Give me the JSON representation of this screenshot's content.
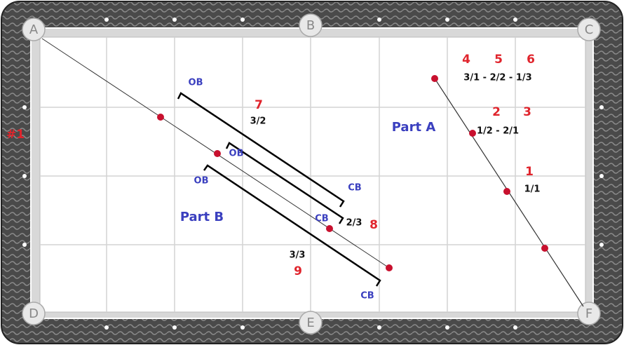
{
  "pockets": {
    "a": "A",
    "b": "B",
    "c": "C",
    "d": "D",
    "e": "E",
    "f": "F"
  },
  "side_label": "#1",
  "part_a": {
    "title": "Part A",
    "top_numbers": [
      "4",
      "5",
      "6"
    ],
    "top_fractions": "3/1 - 2/2 - 1/3",
    "middle_numbers": [
      "2",
      "3"
    ],
    "middle_fractions": "1/2 - 2/1",
    "bottom_number": "1",
    "bottom_fraction": "1/1"
  },
  "part_b": {
    "title": "Part B",
    "upper": {
      "ob": "OB",
      "number": "7",
      "fraction": "3/2",
      "cb": "CB"
    },
    "middle": {
      "ob": "OB",
      "fraction": "2/3",
      "number": "8",
      "cb": "CB"
    },
    "lower": {
      "ob": "OB",
      "fraction": "3/3",
      "number": "9",
      "cb": "CB"
    }
  }
}
